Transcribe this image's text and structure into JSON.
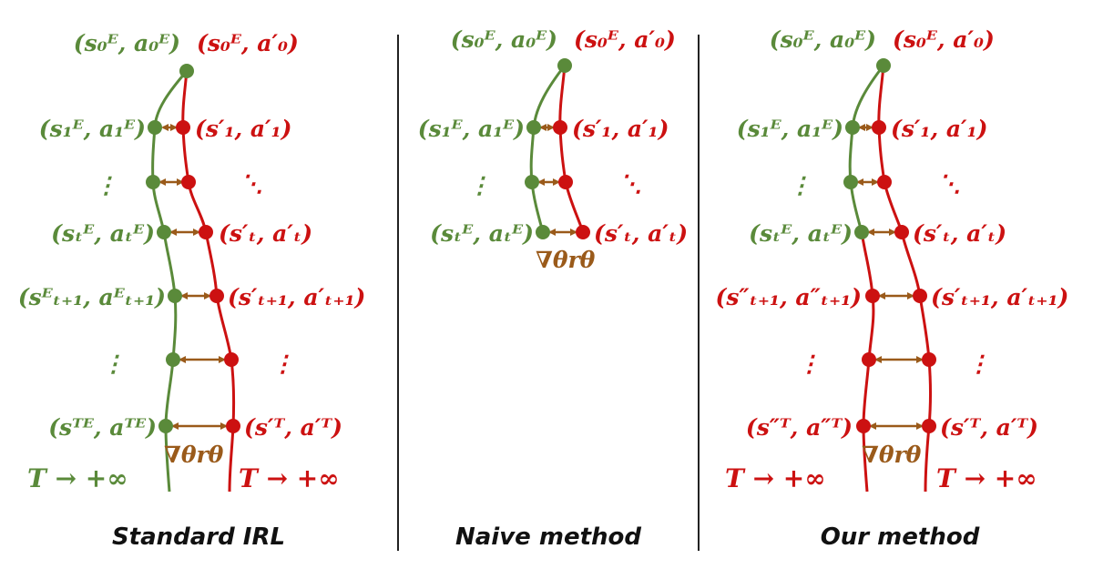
{
  "panels": {
    "standard": {
      "caption": "Standard IRL",
      "labels": {
        "expert_0": "(s₀ᴱ, a₀ᴱ)",
        "policy_0": "(s₀ᴱ, a′₀)",
        "expert_1": "(s₁ᴱ, a₁ᴱ)",
        "policy_1": "(s′₁, a′₁)",
        "expert_t": "(sₜᴱ, aₜᴱ)",
        "policy_t": "(s′ₜ, a′ₜ)",
        "expert_t1": "(sᴱₜ₊₁, aᴱₜ₊₁)",
        "policy_t1": "(s′ₜ₊₁, a′ₜ₊₁)",
        "expert_T": "(sᵀᴱ, aᵀᴱ)",
        "policy_T": "(s′ᵀ, a′ᵀ)",
        "grad": "∇θrθ",
        "horizon_left": "T → +∞",
        "horizon_right": "T → +∞"
      }
    },
    "naive": {
      "caption": "Naive method",
      "labels": {
        "expert_0": "(s₀ᴱ, a₀ᴱ)",
        "policy_0": "(s₀ᴱ, a′₀)",
        "expert_1": "(s₁ᴱ, a₁ᴱ)",
        "policy_1": "(s′₁, a′₁)",
        "expert_t": "(sₜᴱ, aₜᴱ)",
        "policy_t": "(s′ₜ, a′ₜ)",
        "grad": "∇θrθ"
      }
    },
    "ours": {
      "caption": "Our method",
      "labels": {
        "expert_0": "(s₀ᴱ, a₀ᴱ)",
        "policy_0": "(s₀ᴱ, a′₀)",
        "expert_1": "(s₁ᴱ, a₁ᴱ)",
        "policy_1": "(s′₁, a′₁)",
        "expert_t": "(sₜᴱ, aₜᴱ)",
        "policy_t": "(s′ₜ, a′ₜ)",
        "rollout_t1": "(s″ₜ₊₁, a″ₜ₊₁)",
        "policy_t1": "(s′ₜ₊₁, a′ₜ₊₁)",
        "rollout_T": "(s″ᵀ, a″ᵀ)",
        "policy_T": "(s′ᵀ, a′ᵀ)",
        "grad": "∇θrθ",
        "horizon_left": "T → +∞",
        "horizon_right": "T → +∞"
      }
    }
  },
  "colors": {
    "expert": "#5a8a3a",
    "policy": "#cc1111",
    "gradient": "#9a5a1a"
  }
}
